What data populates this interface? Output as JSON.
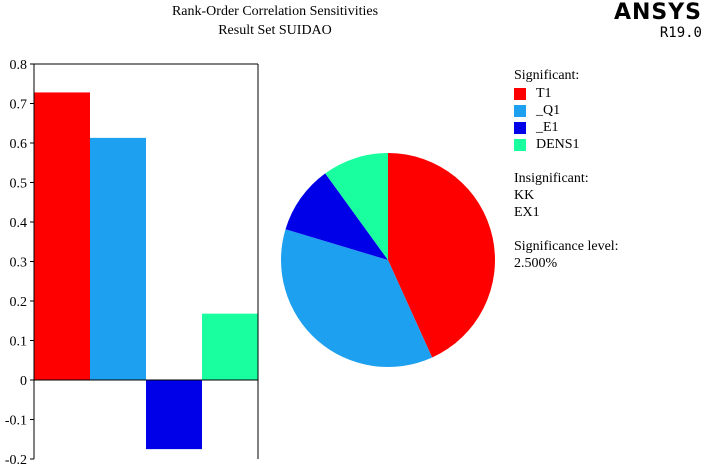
{
  "title_line1": "Rank-Order Correlation Sensitivities",
  "title_line2": "Result Set SUIDAO",
  "brand": {
    "name": "ANSYS",
    "version": "R19.0"
  },
  "legend": {
    "significant_label": "Significant:",
    "insignificant_label": "Insignificant:",
    "insignificant_items": [
      "KK",
      "EX1"
    ],
    "significance_label": "Significance level:",
    "significance_value": "2.500%"
  },
  "chart_data": [
    {
      "type": "bar",
      "categories": [
        "T1",
        "_Q1",
        "_E1",
        "DENS1"
      ],
      "values": [
        0.728,
        0.613,
        -0.175,
        0.168
      ],
      "colors": [
        "#ff0000",
        "#1ea0f0",
        "#0000e8",
        "#19ffa0"
      ],
      "ylim": [
        -0.2,
        0.8
      ],
      "yticks": [
        "-0.2",
        "-0.1",
        "0",
        "0.1",
        "0.2",
        "0.3",
        "0.4",
        "0.5",
        "0.6",
        "0.7",
        "0.8"
      ],
      "ytick_values": [
        -0.2,
        -0.1,
        0,
        0.1,
        0.2,
        0.3,
        0.4,
        0.5,
        0.6,
        0.7,
        0.8
      ],
      "grid": false
    },
    {
      "type": "pie",
      "labels": [
        "T1",
        "_Q1",
        "_E1",
        "DENS1"
      ],
      "values": [
        0.728,
        0.613,
        0.175,
        0.168
      ],
      "colors": [
        "#ff0000",
        "#1ea0f0",
        "#0000e8",
        "#19ffa0"
      ]
    }
  ]
}
